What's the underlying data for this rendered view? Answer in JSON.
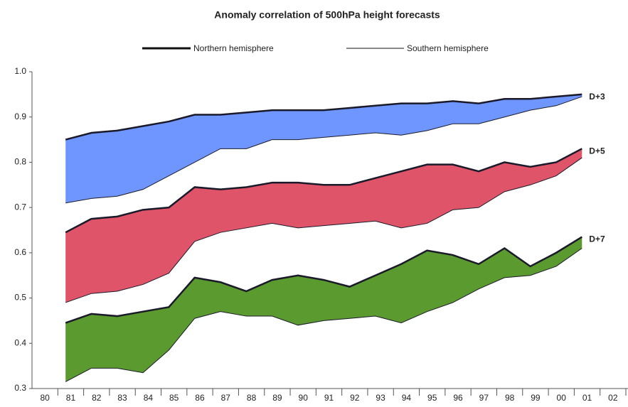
{
  "chart_data": {
    "type": "band",
    "title": "Anomaly correlation of 500hPa height forecasts",
    "series_names": [
      "Northern hemisphere",
      "Southern hemisphere"
    ],
    "categories": [
      "80",
      "81",
      "82",
      "83",
      "84",
      "85",
      "86",
      "87",
      "88",
      "89",
      "90",
      "91",
      "92",
      "93",
      "94",
      "95",
      "96",
      "97",
      "98",
      "99",
      "00",
      "01",
      "02"
    ],
    "ylim": [
      0.3,
      1
    ],
    "yticks": [
      0.3,
      0.4,
      0.5,
      0.6,
      0.7,
      0.8,
      0.9,
      {
        "value": 1,
        "label": "1.0"
      }
    ],
    "groups": [
      {
        "label": "D+3",
        "color": "#6f96ff",
        "northern": [
          null,
          0.85,
          0.865,
          0.87,
          0.88,
          0.89,
          0.905,
          0.905,
          0.91,
          0.915,
          0.915,
          0.915,
          0.92,
          0.925,
          0.93,
          0.93,
          0.935,
          0.93,
          0.94,
          0.94,
          0.945,
          0.95,
          null
        ],
        "southern": [
          null,
          0.71,
          0.72,
          0.725,
          0.74,
          0.77,
          0.8,
          0.83,
          0.83,
          0.85,
          0.85,
          0.855,
          0.86,
          0.865,
          0.86,
          0.87,
          0.885,
          0.885,
          0.9,
          0.915,
          0.925,
          0.945,
          null
        ]
      },
      {
        "label": "D+5",
        "color": "#e0546a",
        "northern": [
          null,
          0.645,
          0.675,
          0.68,
          0.695,
          0.7,
          0.745,
          0.74,
          0.745,
          0.755,
          0.755,
          0.75,
          0.75,
          0.765,
          0.78,
          0.795,
          0.795,
          0.78,
          0.8,
          0.79,
          0.8,
          0.83,
          null
        ],
        "southern": [
          null,
          0.49,
          0.51,
          0.515,
          0.53,
          0.555,
          0.625,
          0.645,
          0.655,
          0.665,
          0.655,
          0.66,
          0.665,
          0.67,
          0.655,
          0.665,
          0.695,
          0.7,
          0.735,
          0.75,
          0.77,
          0.81,
          null
        ]
      },
      {
        "label": "D+7",
        "color": "#5a9a2e",
        "northern": [
          null,
          0.445,
          0.465,
          0.46,
          0.47,
          0.48,
          0.545,
          0.535,
          0.515,
          0.54,
          0.55,
          0.54,
          0.525,
          0.55,
          0.575,
          0.605,
          0.595,
          0.575,
          0.61,
          0.57,
          0.6,
          0.635,
          null
        ],
        "southern": [
          null,
          0.315,
          0.345,
          0.345,
          0.335,
          0.385,
          0.455,
          0.47,
          0.46,
          0.46,
          0.44,
          0.45,
          0.455,
          0.46,
          0.445,
          0.47,
          0.49,
          0.52,
          0.545,
          0.55,
          0.57,
          0.61,
          null
        ]
      }
    ]
  }
}
